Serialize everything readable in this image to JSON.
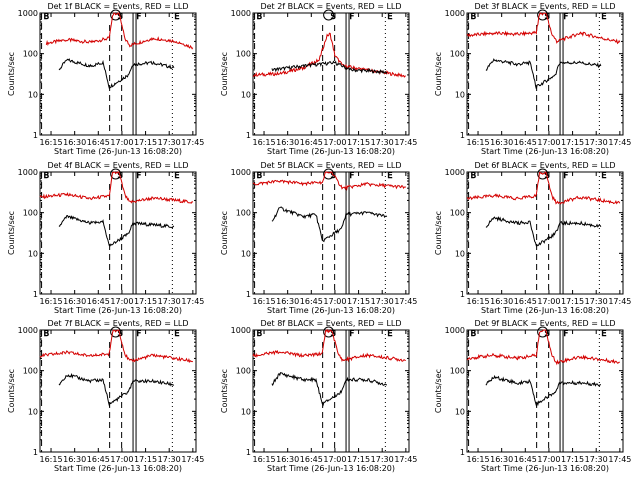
{
  "chart_data": [
    {
      "type": "line",
      "title": "Det 1f BLACK = Events, RED = LLD",
      "xlabel": "Start Time (26-Jun-13 16:08:20)",
      "ylabel": "Counts/sec",
      "xlim": [
        "16:08",
        "17:47"
      ],
      "ylim": [
        1,
        1000
      ],
      "yscale": "log",
      "xticks": [
        "16:15",
        "16:30",
        "16:45",
        "17:00",
        "17:15",
        "17:30",
        "17:45"
      ],
      "yticks": [
        "1",
        "10",
        "100",
        "1000"
      ],
      "markers": [
        {
          "label": "B",
          "x": "16:09",
          "style": "dashed"
        },
        {
          "label": "S",
          "x": "16:56",
          "style": "circled"
        },
        {
          "label": "F",
          "x": "17:08",
          "style": "solid"
        },
        {
          "label": "E",
          "x": "17:32",
          "style": "dotted"
        }
      ],
      "series": [
        {
          "color": "#d40000",
          "x": [
            "16:12",
            "16:25",
            "16:40",
            "16:52",
            "16:54",
            "16:58",
            "17:02",
            "17:05",
            "17:20",
            "17:35",
            "17:45"
          ],
          "y": [
            180,
            220,
            190,
            240,
            900,
            1000,
            230,
            160,
            240,
            200,
            140
          ]
        },
        {
          "color": "#000000",
          "x": [
            "16:20",
            "16:25",
            "16:40",
            "16:48",
            "16:52",
            "17:04",
            "17:07",
            "17:20",
            "17:33"
          ],
          "y": [
            40,
            70,
            50,
            60,
            15,
            30,
            55,
            60,
            45
          ]
        }
      ]
    },
    {
      "type": "line",
      "title": "Det 2f BLACK = Events, RED = LLD",
      "xlabel": "Start Time (26-Jun-13 16:08:20)",
      "ylabel": "Counts/sec",
      "xlim": [
        "16:08",
        "17:47"
      ],
      "ylim": [
        1,
        1000
      ],
      "yscale": "log",
      "xticks": [
        "16:15",
        "16:30",
        "16:45",
        "17:00",
        "17:15",
        "17:30",
        "17:45"
      ],
      "yticks": [
        "1",
        "10",
        "100",
        "1000"
      ],
      "markers": [
        {
          "label": "B",
          "x": "16:09",
          "style": "dashed"
        },
        {
          "label": "S",
          "x": "16:56",
          "style": "circled"
        },
        {
          "label": "F",
          "x": "17:08",
          "style": "solid"
        },
        {
          "label": "E",
          "x": "17:32",
          "style": "dotted"
        }
      ],
      "series": [
        {
          "color": "#d40000",
          "x": [
            "16:08",
            "16:25",
            "16:40",
            "16:50",
            "16:55",
            "16:57",
            "17:00",
            "17:05",
            "17:20",
            "17:45"
          ],
          "y": [
            30,
            32,
            45,
            70,
            280,
            300,
            90,
            50,
            40,
            28
          ]
        },
        {
          "color": "#000000",
          "x": [
            "16:20",
            "16:40",
            "16:50",
            "17:00",
            "17:10",
            "17:33"
          ],
          "y": [
            40,
            50,
            55,
            60,
            40,
            35
          ]
        }
      ]
    },
    {
      "type": "line",
      "title": "Det 3f BLACK = Events, RED = LLD",
      "xlabel": "Start Time (26-Jun-13 16:08:20)",
      "ylabel": "Counts/sec",
      "xlim": [
        "16:08",
        "17:47"
      ],
      "ylim": [
        1,
        1000
      ],
      "yscale": "log",
      "xticks": [
        "16:15",
        "16:30",
        "16:45",
        "17:00",
        "17:15",
        "17:30",
        "17:45"
      ],
      "yticks": [
        "1",
        "10",
        "100",
        "1000"
      ],
      "markers": [
        {
          "label": "B",
          "x": "16:09",
          "style": "dashed"
        },
        {
          "label": "S",
          "x": "16:56",
          "style": "circled"
        },
        {
          "label": "F",
          "x": "17:08",
          "style": "solid"
        },
        {
          "label": "E",
          "x": "17:32",
          "style": "dotted"
        }
      ],
      "series": [
        {
          "color": "#d40000",
          "x": [
            "16:08",
            "16:25",
            "16:40",
            "16:52",
            "16:54",
            "16:58",
            "17:02",
            "17:05",
            "17:20",
            "17:45"
          ],
          "y": [
            280,
            320,
            300,
            330,
            950,
            1000,
            300,
            200,
            320,
            190
          ]
        },
        {
          "color": "#000000",
          "x": [
            "16:20",
            "16:25",
            "16:40",
            "16:48",
            "16:52",
            "17:04",
            "17:07",
            "17:20",
            "17:33"
          ],
          "y": [
            40,
            70,
            55,
            60,
            15,
            30,
            60,
            60,
            50
          ]
        }
      ]
    },
    {
      "type": "line",
      "title": "Det 4f BLACK = Events, RED = LLD",
      "xlabel": "Start Time (26-Jun-13 16:08:20)",
      "ylabel": "Counts/sec",
      "xlim": [
        "16:08",
        "17:47"
      ],
      "ylim": [
        1,
        1000
      ],
      "yscale": "log",
      "xticks": [
        "16:15",
        "16:30",
        "16:45",
        "17:00",
        "17:15",
        "17:30",
        "17:45"
      ],
      "yticks": [
        "1",
        "10",
        "100",
        "1000"
      ],
      "markers": [
        {
          "label": "B",
          "x": "16:09",
          "style": "dashed"
        },
        {
          "label": "S",
          "x": "16:56",
          "style": "circled"
        },
        {
          "label": "F",
          "x": "17:08",
          "style": "solid"
        },
        {
          "label": "E",
          "x": "17:32",
          "style": "dotted"
        }
      ],
      "series": [
        {
          "color": "#d40000",
          "x": [
            "16:08",
            "16:25",
            "16:40",
            "16:52",
            "16:54",
            "16:58",
            "17:02",
            "17:05",
            "17:20",
            "17:45"
          ],
          "y": [
            240,
            280,
            220,
            260,
            900,
            1000,
            260,
            180,
            230,
            180
          ]
        },
        {
          "color": "#000000",
          "x": [
            "16:20",
            "16:25",
            "16:40",
            "16:48",
            "16:52",
            "17:04",
            "17:07",
            "17:20",
            "17:33"
          ],
          "y": [
            45,
            80,
            55,
            60,
            15,
            30,
            55,
            50,
            45
          ]
        }
      ]
    },
    {
      "type": "line",
      "title": "Det 5f BLACK = Events, RED = LLD",
      "xlabel": "Start Time (26-Jun-13 16:08:20)",
      "ylabel": "Counts/sec",
      "xlim": [
        "16:08",
        "17:47"
      ],
      "ylim": [
        1,
        1000
      ],
      "yscale": "log",
      "xticks": [
        "16:15",
        "16:30",
        "16:45",
        "17:00",
        "17:15",
        "17:30",
        "17:45"
      ],
      "yticks": [
        "1",
        "10",
        "100",
        "1000"
      ],
      "markers": [
        {
          "label": "B",
          "x": "16:09",
          "style": "dashed"
        },
        {
          "label": "S",
          "x": "16:56",
          "style": "circled"
        },
        {
          "label": "F",
          "x": "17:08",
          "style": "solid"
        },
        {
          "label": "E",
          "x": "17:32",
          "style": "dotted"
        }
      ],
      "series": [
        {
          "color": "#d40000",
          "x": [
            "16:08",
            "16:25",
            "16:40",
            "16:52",
            "16:54",
            "16:58",
            "17:02",
            "17:05",
            "17:20",
            "17:45"
          ],
          "y": [
            500,
            600,
            520,
            560,
            950,
            1000,
            560,
            400,
            500,
            420
          ]
        },
        {
          "color": "#000000",
          "x": [
            "16:20",
            "16:25",
            "16:40",
            "16:48",
            "16:52",
            "17:04",
            "17:07",
            "17:20",
            "17:33"
          ],
          "y": [
            60,
            130,
            80,
            90,
            20,
            40,
            90,
            100,
            80
          ]
        }
      ]
    },
    {
      "type": "line",
      "title": "Det 6f BLACK = Events, RED = LLD",
      "xlabel": "Start Time (26-Jun-13 16:08:20)",
      "ylabel": "Counts/sec",
      "xlim": [
        "16:08",
        "17:47"
      ],
      "ylim": [
        1,
        1000
      ],
      "yscale": "log",
      "xticks": [
        "16:15",
        "16:30",
        "16:45",
        "17:00",
        "17:15",
        "17:30",
        "17:45"
      ],
      "yticks": [
        "1",
        "10",
        "100",
        "1000"
      ],
      "markers": [
        {
          "label": "B",
          "x": "16:09",
          "style": "dashed"
        },
        {
          "label": "S",
          "x": "16:56",
          "style": "circled"
        },
        {
          "label": "F",
          "x": "17:08",
          "style": "solid"
        },
        {
          "label": "E",
          "x": "17:32",
          "style": "dotted"
        }
      ],
      "series": [
        {
          "color": "#d40000",
          "x": [
            "16:08",
            "16:25",
            "16:40",
            "16:52",
            "16:54",
            "16:58",
            "17:02",
            "17:05",
            "17:20",
            "17:45"
          ],
          "y": [
            220,
            260,
            220,
            260,
            900,
            1000,
            250,
            170,
            240,
            170
          ]
        },
        {
          "color": "#000000",
          "x": [
            "16:20",
            "16:25",
            "16:40",
            "16:48",
            "16:52",
            "17:04",
            "17:07",
            "17:20",
            "17:33"
          ],
          "y": [
            45,
            75,
            55,
            60,
            15,
            30,
            55,
            55,
            45
          ]
        }
      ]
    },
    {
      "type": "line",
      "title": "Det 7f BLACK = Events, RED = LLD",
      "xlabel": "Start Time (26-Jun-13 16:08:20)",
      "ylabel": "Counts/sec",
      "xlim": [
        "16:08",
        "17:47"
      ],
      "ylim": [
        1,
        1000
      ],
      "yscale": "log",
      "xticks": [
        "16:15",
        "16:30",
        "16:45",
        "17:00",
        "17:15",
        "17:30",
        "17:45"
      ],
      "yticks": [
        "1",
        "10",
        "100",
        "1000"
      ],
      "markers": [
        {
          "label": "B",
          "x": "16:09",
          "style": "dashed"
        },
        {
          "label": "S",
          "x": "16:56",
          "style": "circled"
        },
        {
          "label": "F",
          "x": "17:08",
          "style": "solid"
        },
        {
          "label": "E",
          "x": "17:32",
          "style": "dotted"
        }
      ],
      "series": [
        {
          "color": "#d40000",
          "x": [
            "16:08",
            "16:25",
            "16:40",
            "16:52",
            "16:54",
            "16:58",
            "17:02",
            "17:05",
            "17:20",
            "17:45"
          ],
          "y": [
            230,
            280,
            230,
            260,
            900,
            1000,
            250,
            170,
            240,
            170
          ]
        },
        {
          "color": "#000000",
          "x": [
            "16:20",
            "16:25",
            "16:40",
            "16:48",
            "16:52",
            "17:04",
            "17:07",
            "17:20",
            "17:33"
          ],
          "y": [
            45,
            80,
            55,
            60,
            15,
            30,
            55,
            55,
            45
          ]
        }
      ]
    },
    {
      "type": "line",
      "title": "Det 8f BLACK = Events, RED = LLD",
      "xlabel": "Start Time (26-Jun-13 16:08:20)",
      "ylabel": "Counts/sec",
      "xlim": [
        "16:08",
        "17:47"
      ],
      "ylim": [
        1,
        1000
      ],
      "yscale": "log",
      "xticks": [
        "16:15",
        "16:30",
        "16:45",
        "17:00",
        "17:15",
        "17:30",
        "17:45"
      ],
      "yticks": [
        "1",
        "10",
        "100",
        "1000"
      ],
      "markers": [
        {
          "label": "B",
          "x": "16:09",
          "style": "dashed"
        },
        {
          "label": "S",
          "x": "16:56",
          "style": "circled"
        },
        {
          "label": "F",
          "x": "17:08",
          "style": "solid"
        },
        {
          "label": "E",
          "x": "17:32",
          "style": "dotted"
        }
      ],
      "series": [
        {
          "color": "#d40000",
          "x": [
            "16:08",
            "16:25",
            "16:40",
            "16:52",
            "16:54",
            "16:58",
            "17:02",
            "17:05",
            "17:20",
            "17:45"
          ],
          "y": [
            230,
            290,
            230,
            260,
            900,
            1000,
            260,
            180,
            240,
            180
          ]
        },
        {
          "color": "#000000",
          "x": [
            "16:20",
            "16:25",
            "16:40",
            "16:48",
            "16:52",
            "17:04",
            "17:07",
            "17:20",
            "17:33"
          ],
          "y": [
            45,
            85,
            60,
            60,
            15,
            30,
            60,
            60,
            45
          ]
        }
      ]
    },
    {
      "type": "line",
      "title": "Det 9f BLACK = Events, RED = LLD",
      "xlabel": "Start Time (26-Jun-13 16:08:20)",
      "ylabel": "Counts/sec",
      "xlim": [
        "16:08",
        "17:47"
      ],
      "ylim": [
        1,
        1000
      ],
      "yscale": "log",
      "xticks": [
        "16:15",
        "16:30",
        "16:45",
        "17:00",
        "17:15",
        "17:30",
        "17:45"
      ],
      "yticks": [
        "1",
        "10",
        "100",
        "1000"
      ],
      "markers": [
        {
          "label": "B",
          "x": "16:09",
          "style": "dashed"
        },
        {
          "label": "S",
          "x": "16:56",
          "style": "circled"
        },
        {
          "label": "F",
          "x": "17:08",
          "style": "solid"
        },
        {
          "label": "E",
          "x": "17:32",
          "style": "dotted"
        }
      ],
      "series": [
        {
          "color": "#d40000",
          "x": [
            "16:08",
            "16:25",
            "16:40",
            "16:52",
            "16:54",
            "16:58",
            "17:02",
            "17:05",
            "17:20",
            "17:45"
          ],
          "y": [
            200,
            240,
            200,
            240,
            900,
            1000,
            230,
            160,
            220,
            160
          ]
        },
        {
          "color": "#000000",
          "x": [
            "16:20",
            "16:25",
            "16:40",
            "16:48",
            "16:52",
            "17:04",
            "17:07",
            "17:20",
            "17:33"
          ],
          "y": [
            45,
            70,
            50,
            55,
            15,
            30,
            50,
            50,
            45
          ]
        }
      ]
    }
  ]
}
